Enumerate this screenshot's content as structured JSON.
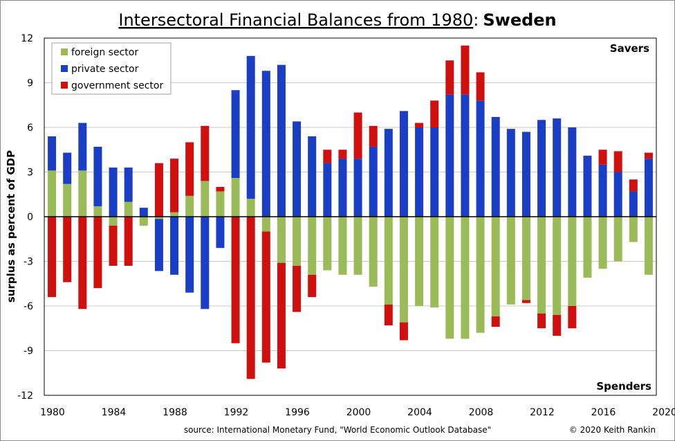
{
  "chart_data": {
    "type": "bar",
    "stacked": true,
    "title_part1": "Intersectoral Financial Balances from 1980",
    "title_sep": ":",
    "title_part2": "Sweden",
    "ylabel": "surplus as percent of GDP",
    "xlabel": "",
    "ylim": [
      -12,
      12
    ],
    "yticks": [
      12,
      9,
      6,
      3,
      0,
      -3,
      -6,
      -9,
      -12
    ],
    "xticks": [
      1980,
      1984,
      1988,
      1992,
      1996,
      2000,
      2004,
      2008,
      2012,
      2016,
      2020
    ],
    "grid": true,
    "legend_position": "top-left",
    "annotation_top": "Savers",
    "annotation_bottom": "Spenders",
    "source": "source:  International Monetary Fund, \"World Economic Outlook Database\"",
    "credit": "© 2020  Keith Rankin",
    "categories": [
      1980,
      1981,
      1982,
      1983,
      1984,
      1985,
      1986,
      1987,
      1988,
      1989,
      1990,
      1991,
      1992,
      1993,
      1994,
      1995,
      1996,
      1997,
      1998,
      1999,
      2000,
      2001,
      2002,
      2003,
      2004,
      2005,
      2006,
      2007,
      2008,
      2009,
      2010,
      2011,
      2012,
      2013,
      2014,
      2015,
      2016,
      2017,
      2018,
      2019
    ],
    "series": [
      {
        "name": "foreign sector",
        "color": "#9bbb59",
        "values": [
          3.1,
          2.2,
          3.1,
          0.7,
          -0.6,
          1.0,
          -0.6,
          -0.15,
          0.3,
          1.4,
          2.4,
          1.7,
          2.6,
          1.2,
          -1.0,
          -3.1,
          -3.3,
          -3.9,
          -3.6,
          -3.9,
          -3.9,
          -4.7,
          -5.9,
          -7.1,
          -6.0,
          -6.1,
          -8.2,
          -8.2,
          -7.8,
          -6.7,
          -5.9,
          -5.6,
          -6.5,
          -6.6,
          -6.0,
          -4.1,
          -3.5,
          -3.0,
          -1.7,
          -3.9
        ]
      },
      {
        "name": "private sector",
        "color": "#1a3fc4",
        "values": [
          2.3,
          2.1,
          3.2,
          4.0,
          3.3,
          2.3,
          0.6,
          -3.5,
          -3.9,
          -5.1,
          -6.2,
          -2.1,
          5.9,
          9.6,
          9.8,
          10.2,
          6.4,
          5.4,
          3.6,
          3.9,
          3.9,
          4.7,
          5.9,
          7.1,
          6.0,
          6.0,
          8.2,
          8.2,
          7.8,
          6.7,
          5.9,
          5.7,
          6.5,
          6.6,
          6.0,
          4.1,
          3.5,
          3.0,
          1.7,
          3.9
        ]
      },
      {
        "name": "government sector",
        "color": "#d00f0f",
        "values": [
          -5.4,
          -4.4,
          -6.2,
          -4.8,
          -2.7,
          -3.3,
          0,
          3.6,
          3.6,
          3.6,
          3.7,
          0.3,
          -8.5,
          -10.9,
          -8.8,
          -7.1,
          -3.1,
          -1.5,
          0.9,
          0.6,
          3.1,
          1.4,
          -1.4,
          -1.2,
          0.3,
          1.8,
          2.3,
          3.3,
          1.9,
          -0.7,
          0,
          -0.2,
          -1.0,
          -1.4,
          -1.5,
          0,
          1.0,
          1.4,
          0.8,
          0.4
        ]
      }
    ]
  }
}
